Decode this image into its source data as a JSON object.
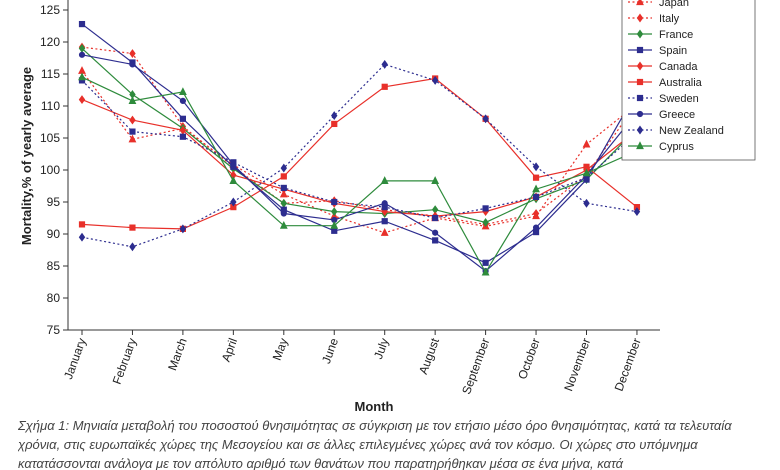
{
  "chart_data": {
    "type": "line",
    "title": "",
    "xlabel": "Month",
    "ylabel": "Mortality,% of yearly average",
    "ylim": [
      75,
      125
    ],
    "yticks": [
      75,
      80,
      85,
      90,
      95,
      100,
      105,
      110,
      115,
      120,
      125
    ],
    "categories": [
      "January",
      "February",
      "March",
      "April",
      "May",
      "June",
      "July",
      "August",
      "September",
      "October",
      "November",
      "December"
    ],
    "grid": false,
    "legend_position": "top-right",
    "series": [
      {
        "name": "Japan",
        "color": "#e8302a",
        "dash": "dotted",
        "marker": "triangle",
        "values": [
          115.5,
          104.8,
          106.5,
          100.8,
          96.2,
          92.8,
          90.2,
          92.5,
          91.2,
          92.8,
          104.0,
          110.3
        ]
      },
      {
        "name": "Italy",
        "color": "#e8302a",
        "dash": "dotted",
        "marker": "diamond",
        "values": [
          119.2,
          118.2,
          106.8,
          100.5,
          94.8,
          95.2,
          93.8,
          92.8,
          91.5,
          93.2,
          99.2,
          110.5
        ]
      },
      {
        "name": "France",
        "color": "#2e8b3c",
        "dash": "solid",
        "marker": "diamond",
        "values": [
          119.0,
          111.8,
          106.5,
          100.2,
          94.8,
          93.5,
          93.2,
          93.8,
          91.8,
          95.5,
          98.5,
          106.5
        ]
      },
      {
        "name": "Spain",
        "color": "#2d2d8f",
        "dash": "solid",
        "marker": "square",
        "values": [
          122.8,
          116.8,
          108.0,
          100.5,
          93.8,
          90.5,
          92.0,
          89.0,
          85.5,
          90.3,
          98.5,
          112.3
        ]
      },
      {
        "name": "Canada",
        "color": "#e8302a",
        "dash": "solid",
        "marker": "diamond",
        "values": [
          111.0,
          107.8,
          106.2,
          99.2,
          97.0,
          94.8,
          93.5,
          92.8,
          93.5,
          95.8,
          100.0,
          106.2
        ]
      },
      {
        "name": "Australia",
        "color": "#e8302a",
        "dash": "solid",
        "marker": "square",
        "values": [
          91.5,
          91.0,
          90.8,
          94.2,
          99.0,
          107.2,
          113.0,
          114.3,
          108.0,
          98.8,
          100.5,
          94.2
        ]
      },
      {
        "name": "Sweden",
        "color": "#2d2d8f",
        "dash": "dotted",
        "marker": "square",
        "values": [
          114.0,
          106.0,
          105.2,
          101.2,
          97.2,
          95.0,
          94.2,
          92.5,
          94.0,
          95.8,
          98.8,
          105.8
        ]
      },
      {
        "name": "Greece",
        "color": "#2d2d8f",
        "dash": "solid",
        "marker": "circle",
        "values": [
          118.0,
          116.5,
          110.8,
          100.8,
          93.2,
          92.2,
          94.8,
          90.2,
          84.2,
          91.0,
          99.2,
          109.0
        ]
      },
      {
        "name": "New Zealand",
        "color": "#2d2d8f",
        "dash": "dotted",
        "marker": "diamond",
        "values": [
          89.5,
          88.0,
          90.8,
          95.0,
          100.3,
          108.5,
          116.5,
          114.0,
          108.0,
          100.5,
          94.8,
          93.5
        ]
      },
      {
        "name": "Cyprus",
        "color": "#2e8b3c",
        "dash": "solid",
        "marker": "triangle",
        "values": [
          114.5,
          110.8,
          112.2,
          98.3,
          91.3,
          91.3,
          98.3,
          98.3,
          84.0,
          97.0,
          99.5,
          103.0
        ]
      }
    ]
  },
  "caption": "Σχήμα 1: Μηνιαία μεταβολή του ποσοστού θνησιμότητας σε σύγκριση με τον ετήσιο μέσο όρο θνησιμότητας, κατά τα τελευταία χρόνια, στις ευρωπαϊκές χώρες της Μεσογείου και σε άλλες επιλεγμένες χώρες ανά τον κόσμο. Οι χώρες στο υπόμνημα κατατάσσονται ανάλογα με τον απόλυτο αριθμό των θανάτων που παρατηρήθηκαν μέσα σε ένα μήνα, κατά"
}
